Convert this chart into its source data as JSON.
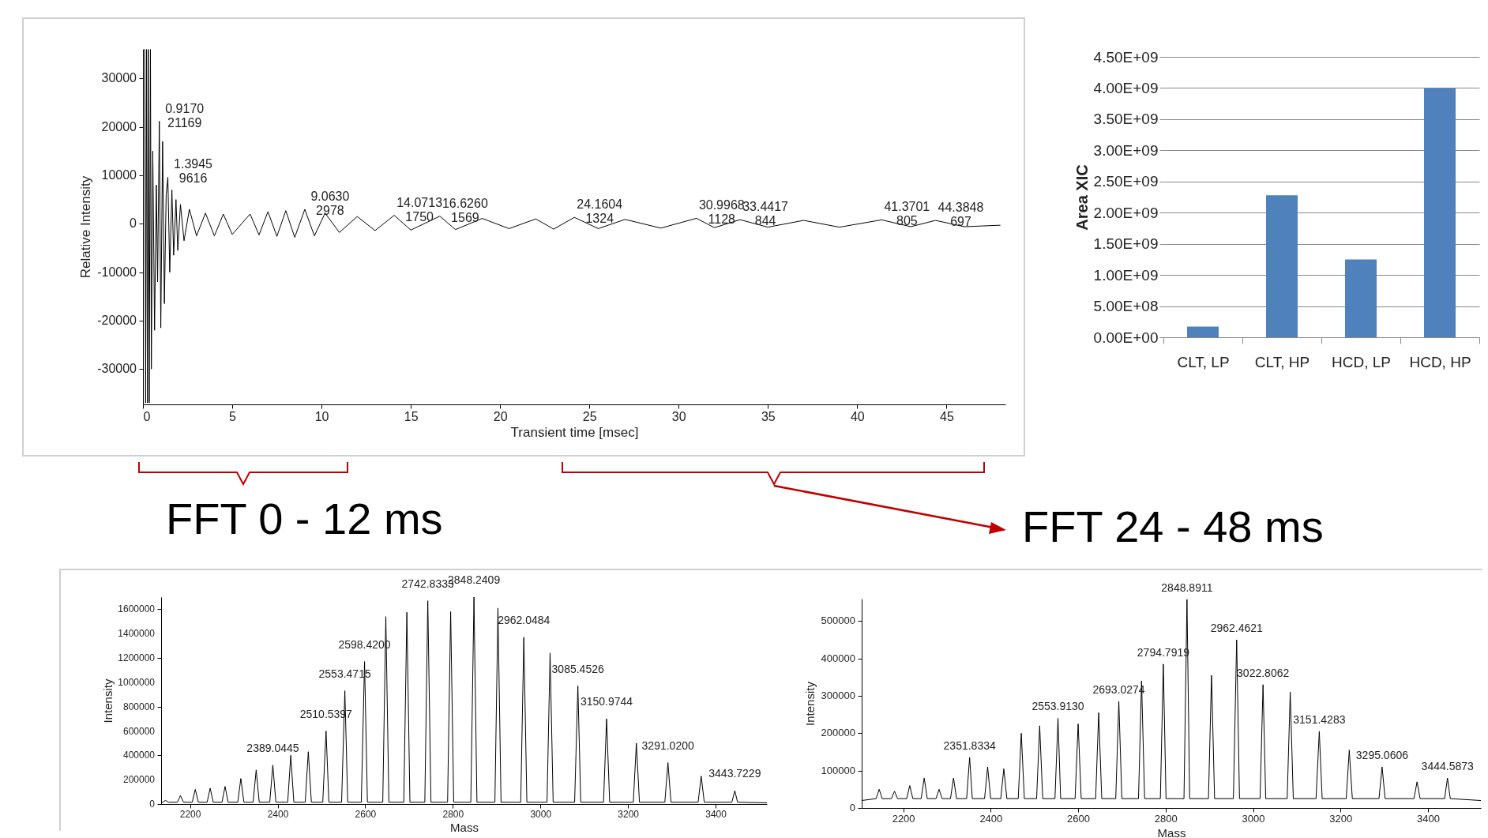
{
  "chart_data": [
    {
      "type": "line",
      "xlabel": "Transient time [msec]",
      "ylabel": "Relative Intensity",
      "color": "#000000",
      "x": [
        0.1,
        0.15,
        0.2,
        0.25,
        0.3,
        0.35,
        0.42,
        0.47,
        0.55,
        0.65,
        0.75,
        0.82,
        0.917,
        1.0,
        1.1,
        1.2,
        1.3,
        1.3945,
        1.5,
        1.62,
        1.72,
        1.85,
        1.95,
        2.1,
        2.3,
        2.6,
        3.0,
        3.5,
        4.0,
        4.5,
        5.0,
        6.0,
        6.5,
        7.0,
        7.5,
        8.0,
        8.5,
        9.063,
        9.6,
        10.2,
        11.0,
        12.0,
        13.0,
        14.0713,
        15.0,
        16.626,
        17.5,
        19.0,
        20.5,
        22.0,
        23.0,
        24.1604,
        25.5,
        27.0,
        29.0,
        30.9968,
        32.0,
        33.4417,
        35.0,
        37.0,
        39.0,
        41.3701,
        43.0,
        44.3848,
        46.0,
        48.0
      ],
      "values": [
        36000,
        -37000,
        36000,
        -37000,
        36000,
        -37000,
        36000,
        -30000,
        15000,
        -22000,
        8000,
        -12000,
        21169,
        -21500,
        17000,
        -16500,
        6000,
        9616,
        -10000,
        7000,
        -6500,
        5000,
        -5500,
        4000,
        -3500,
        3000,
        -2500,
        2200,
        -2500,
        2000,
        -2200,
        2000,
        -2300,
        2500,
        -2600,
        2700,
        -2800,
        2978,
        -2500,
        2200,
        -1800,
        1500,
        -1400,
        1750,
        -1300,
        1569,
        -1200,
        1100,
        -1000,
        1000,
        -1100,
        1324,
        -1000,
        900,
        -900,
        1128,
        -800,
        844,
        -700,
        700,
        -700,
        805,
        -600,
        697,
        -600,
        -300
      ],
      "xlim": [
        0,
        48.3
      ],
      "ylim": [
        -37300,
        36100
      ],
      "xticks": [
        0,
        5,
        10,
        15,
        20,
        25,
        30,
        35,
        40,
        45
      ],
      "yticks": [
        -30000,
        -20000,
        -10000,
        0,
        10000,
        20000,
        30000
      ],
      "annotations": [
        {
          "text": "0.9170\n21169",
          "x": 0.917,
          "y": 21169
        },
        {
          "text": "1.3945\n9616",
          "x": 1.3945,
          "y": 9616
        },
        {
          "text": "9.0630\n2978",
          "x": 9.063,
          "y": 2978
        },
        {
          "text": "14.0713\n1750",
          "x": 14.0713,
          "y": 1750
        },
        {
          "text": "16.6260\n1569",
          "x": 16.626,
          "y": 1569
        },
        {
          "text": "24.1604\n1324",
          "x": 24.1604,
          "y": 1324
        },
        {
          "text": "30.9968\n1128",
          "x": 30.9968,
          "y": 1128
        },
        {
          "text": "33.4417\n844",
          "x": 33.4417,
          "y": 844
        },
        {
          "text": "41.3701\n805",
          "x": 41.3701,
          "y": 805
        },
        {
          "text": "44.3848\n697",
          "x": 44.3848,
          "y": 697
        }
      ]
    },
    {
      "type": "bar",
      "ylabel": "Area XIC",
      "categories": [
        "CLT, LP",
        "CLT, HP",
        "HCD, LP",
        "HCD, HP"
      ],
      "values": [
        170000000,
        2280000000,
        1250000000,
        4000000000
      ],
      "color": "#4f81bd",
      "ylim": [
        0,
        4500000000
      ],
      "grid": "y",
      "yticks": [
        {
          "value": 0,
          "label": "0.00E+00"
        },
        {
          "value": 500000000,
          "label": "5.00E+08"
        },
        {
          "value": 1000000000,
          "label": "1.00E+09"
        },
        {
          "value": 1500000000,
          "label": "1.50E+09"
        },
        {
          "value": 2000000000,
          "label": "2.00E+09"
        },
        {
          "value": 2500000000,
          "label": "2.50E+09"
        },
        {
          "value": 3000000000,
          "label": "3.00E+09"
        },
        {
          "value": 3500000000,
          "label": "3.50E+09"
        },
        {
          "value": 4000000000,
          "label": "4.00E+09"
        },
        {
          "value": 4500000000,
          "label": "4.50E+09"
        }
      ]
    },
    {
      "type": "line",
      "title": "FFT 0 - 12 ms",
      "xlabel": "Mass",
      "ylabel": "Intensity",
      "color": "#000000",
      "x": [
        2134,
        2137,
        2144,
        2151,
        2171,
        2178,
        2185,
        2205,
        2212,
        2219,
        2239,
        2246,
        2253,
        2273,
        2280,
        2287,
        2309,
        2316,
        2323,
        2344,
        2351,
        2358,
        2382,
        2389.0445,
        2396,
        2423,
        2430,
        2437,
        2463,
        2470,
        2477,
        2503,
        2510.5397,
        2517,
        2546,
        2553.4715,
        2560,
        2591,
        2598.42,
        2605,
        2640,
        2647,
        2654,
        2688,
        2695,
        2702,
        2736,
        2742.8333,
        2750,
        2788,
        2795,
        2802,
        2841,
        2848.2409,
        2855,
        2896,
        2903,
        2910,
        2955,
        2962.0484,
        2969,
        3015,
        3022,
        3029,
        3078,
        3085.4526,
        3092,
        3144,
        3150.9744,
        3158,
        3212,
        3219,
        3226,
        3284,
        3291.02,
        3298,
        3360,
        3367,
        3374,
        3437,
        3443.7229,
        3450,
        3517
      ],
      "values": [
        10000,
        15000,
        30000,
        15000,
        15000,
        70000,
        15000,
        15000,
        120000,
        15000,
        15000,
        130000,
        15000,
        15000,
        145000,
        15000,
        15000,
        210000,
        15000,
        15000,
        280000,
        15000,
        15000,
        320000,
        15000,
        15000,
        400000,
        15000,
        15000,
        430000,
        15000,
        15000,
        600000,
        15000,
        15000,
        930000,
        15000,
        15000,
        1170000,
        15000,
        15000,
        1540000,
        15000,
        15000,
        1575000,
        15000,
        15000,
        1670000,
        15000,
        15000,
        1580000,
        15000,
        15000,
        1700000,
        15000,
        15000,
        1610000,
        15000,
        15000,
        1370000,
        15000,
        15000,
        1240000,
        15000,
        15000,
        970000,
        15000,
        15000,
        700000,
        15000,
        15000,
        500000,
        15000,
        15000,
        340000,
        15000,
        15000,
        230000,
        15000,
        15000,
        110000,
        15000,
        10000
      ],
      "xlim": [
        2134,
        3517
      ],
      "ylim": [
        0,
        1700000
      ],
      "xticks": [
        2200,
        2400,
        2600,
        2800,
        3000,
        3200,
        3400
      ],
      "yticks": [
        0,
        200000,
        400000,
        600000,
        800000,
        1000000,
        1200000,
        1400000,
        1600000
      ],
      "annotations": [
        {
          "text": "2389.0445",
          "x": 2389.0445,
          "y": 320000
        },
        {
          "text": "2510.5397",
          "x": 2510.5397,
          "y": 600000
        },
        {
          "text": "2553.4715",
          "x": 2553.4715,
          "y": 930000
        },
        {
          "text": "2598.4200",
          "x": 2598.42,
          "y": 1170000
        },
        {
          "text": "2742.8333",
          "x": 2742.8333,
          "y": 1670000
        },
        {
          "text": "2848.2409",
          "x": 2848.2409,
          "y": 1700000
        },
        {
          "text": "2962.0484",
          "x": 2962.0484,
          "y": 1370000
        },
        {
          "text": "3085.4526",
          "x": 3085.4526,
          "y": 970000
        },
        {
          "text": "3150.9744",
          "x": 3150.9744,
          "y": 700000
        },
        {
          "text": "3291.0200",
          "x": 3291.02,
          "y": 340000
        },
        {
          "text": "3443.7229",
          "x": 3443.7229,
          "y": 110000
        }
      ]
    },
    {
      "type": "line",
      "title": "FFT 24 - 48 ms",
      "xlabel": "Mass",
      "ylabel": "Intensity",
      "color": "#000000",
      "x": [
        2105,
        2138,
        2145,
        2152,
        2173,
        2180,
        2187,
        2208,
        2215,
        2222,
        2241,
        2248,
        2255,
        2275,
        2282,
        2289,
        2308,
        2315,
        2322,
        2345,
        2351.8334,
        2358,
        2386,
        2393,
        2400,
        2423,
        2430,
        2437,
        2463,
        2470,
        2477,
        2505,
        2512,
        2519,
        2547,
        2553.913,
        2560,
        2593,
        2600,
        2607,
        2640,
        2647,
        2654,
        2686,
        2693.0274,
        2700,
        2738,
        2745,
        2752,
        2788,
        2794.7919,
        2801,
        2842,
        2848.8911,
        2855,
        2898,
        2905,
        2912,
        2955,
        2962.4621,
        2969,
        3016,
        3022.8062,
        3029,
        3078,
        3085,
        3092,
        3144,
        3151.4283,
        3158,
        3213,
        3220,
        3227,
        3288,
        3295.0606,
        3302,
        3368,
        3375,
        3382,
        3438,
        3444.5873,
        3451,
        3521
      ],
      "values": [
        20000,
        25000,
        50000,
        25000,
        25000,
        45000,
        25000,
        25000,
        60000,
        25000,
        25000,
        80000,
        25000,
        25000,
        50000,
        25000,
        25000,
        80000,
        25000,
        25000,
        135000,
        25000,
        25000,
        110000,
        25000,
        25000,
        105000,
        25000,
        25000,
        200000,
        25000,
        25000,
        220000,
        25000,
        25000,
        240000,
        25000,
        25000,
        225000,
        25000,
        25000,
        255000,
        25000,
        25000,
        285000,
        25000,
        25000,
        340000,
        25000,
        25000,
        385000,
        25000,
        25000,
        558000,
        25000,
        25000,
        355000,
        25000,
        25000,
        450000,
        25000,
        25000,
        330000,
        25000,
        25000,
        310000,
        25000,
        25000,
        205000,
        25000,
        25000,
        155000,
        25000,
        25000,
        110000,
        25000,
        25000,
        70000,
        25000,
        25000,
        80000,
        25000,
        20000
      ],
      "xlim": [
        2105,
        3521
      ],
      "ylim": [
        0,
        560000
      ],
      "xticks": [
        2200,
        2400,
        2600,
        2800,
        3000,
        3200,
        3400
      ],
      "yticks": [
        0,
        100000,
        200000,
        300000,
        400000,
        500000
      ],
      "annotations": [
        {
          "text": "2351.8334",
          "x": 2351.8334,
          "y": 135000
        },
        {
          "text": "2553.9130",
          "x": 2553.913,
          "y": 240000
        },
        {
          "text": "2693.0274",
          "x": 2693.0274,
          "y": 285000
        },
        {
          "text": "2794.7919",
          "x": 2794.7919,
          "y": 385000
        },
        {
          "text": "2848.8911",
          "x": 2848.8911,
          "y": 558000
        },
        {
          "text": "2962.4621",
          "x": 2962.4621,
          "y": 450000
        },
        {
          "text": "3022.8062",
          "x": 3022.8062,
          "y": 330000
        },
        {
          "text": "3151.4283",
          "x": 3151.4283,
          "y": 205000
        },
        {
          "text": "3295.0606",
          "x": 3295.0606,
          "y": 110000
        },
        {
          "text": "3444.5873",
          "x": 3444.5873,
          "y": 80000
        }
      ]
    }
  ]
}
